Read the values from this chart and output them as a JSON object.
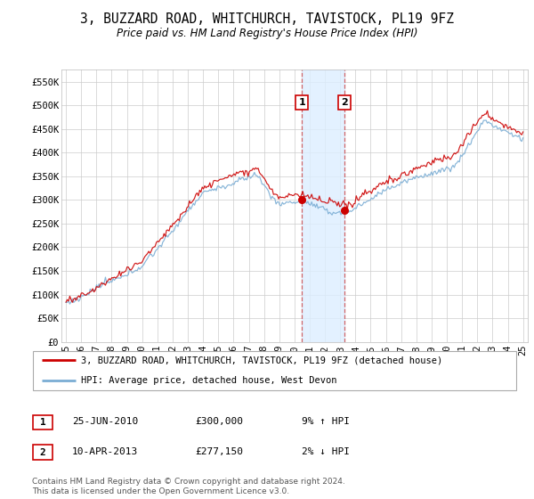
{
  "title": "3, BUZZARD ROAD, WHITCHURCH, TAVISTOCK, PL19 9FZ",
  "subtitle": "Price paid vs. HM Land Registry's House Price Index (HPI)",
  "ylabel_ticks": [
    "£0",
    "£50K",
    "£100K",
    "£150K",
    "£200K",
    "£250K",
    "£300K",
    "£350K",
    "£400K",
    "£450K",
    "£500K",
    "£550K"
  ],
  "ytick_values": [
    0,
    50000,
    100000,
    150000,
    200000,
    250000,
    300000,
    350000,
    400000,
    450000,
    500000,
    550000
  ],
  "ylim": [
    0,
    575000
  ],
  "xlim_start": 1994.7,
  "xlim_end": 2025.3,
  "purchase1_date": 2010.48,
  "purchase1_price": 300000,
  "purchase2_date": 2013.27,
  "purchase2_price": 277150,
  "legend_line1": "3, BUZZARD ROAD, WHITCHURCH, TAVISTOCK, PL19 9FZ (detached house)",
  "legend_line2": "HPI: Average price, detached house, West Devon",
  "purchase1_text": "25-JUN-2010",
  "purchase1_price_text": "£300,000",
  "purchase1_hpi_text": "9% ↑ HPI",
  "purchase2_text": "10-APR-2013",
  "purchase2_price_text": "£277,150",
  "purchase2_hpi_text": "2% ↓ HPI",
  "footer": "Contains HM Land Registry data © Crown copyright and database right 2024.\nThis data is licensed under the Open Government Licence v3.0.",
  "line_color_red": "#cc0000",
  "line_color_blue": "#7aadd4",
  "highlight_fill": "#ddeeff",
  "grid_color": "#cccccc",
  "background_color": "#ffffff"
}
